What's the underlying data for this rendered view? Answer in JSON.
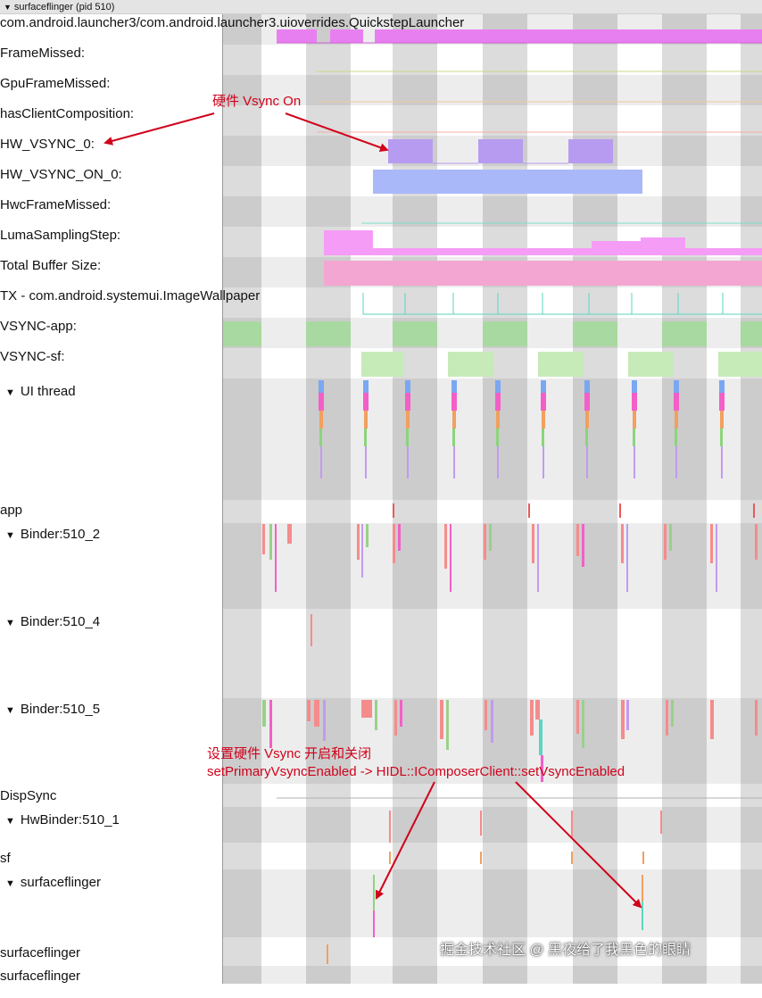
{
  "window": {
    "title": "surfaceflinger (pid 510)"
  },
  "tracks": {
    "launcher_counter": "com.android.launcher3/com.android.launcher3.uioverrides.QuickstepLauncher",
    "frame_missed": "FrameMissed:",
    "gpu_frame_missed": "GpuFrameMissed:",
    "has_client_composition": "hasClientComposition:",
    "hw_vsync_0": "HW_VSYNC_0:",
    "hw_vsync_on_0": "HW_VSYNC_ON_0:",
    "hwc_frame_missed": "HwcFrameMissed:",
    "luma_sampling_step": "LumaSamplingStep:",
    "total_buffer_size": "Total Buffer Size:",
    "tx_systemui": "TX - com.android.systemui.ImageWallpaper",
    "vsync_app": "VSYNC-app:",
    "vsync_sf": "VSYNC-sf:",
    "ui_thread": "UI thread",
    "app": "app",
    "binder_510_2": "Binder:510_2",
    "binder_510_4": "Binder:510_4",
    "binder_510_5": "Binder:510_5",
    "dispsync": "DispSync",
    "hwbinder_510_1": "HwBinder:510_1",
    "sf": "sf",
    "surfaceflinger_thread": "surfaceflinger",
    "surfaceflinger_a": "surfaceflinger",
    "surfaceflinger_b": "surfaceflinger"
  },
  "annotations": {
    "hw_vsync_on": "硬件 Vsync On",
    "set_vsync_line1": "设置硬件 Vsync 开启和关闭",
    "set_vsync_line2": "setPrimaryVsyncEnabled -> HIDL::IComposerClient::setVsyncEnabled"
  },
  "watermark": "掘金技术社区 @ 黑夜给了我黑色的眼睛",
  "colors": {
    "annotation": "#d0021b",
    "launcher": "#e87ff0",
    "hw_vsync": "#b79bf0",
    "hw_vsync_on": "#a9b8f8",
    "luma": "#f59cf7",
    "buffer": "#f3a6d2",
    "vsync_app": "#a8d9a0",
    "vsync_sf": "#c6eab8",
    "tx_line": "#5ad6c2"
  },
  "icons": {
    "expand": "expand-caret-icon"
  }
}
